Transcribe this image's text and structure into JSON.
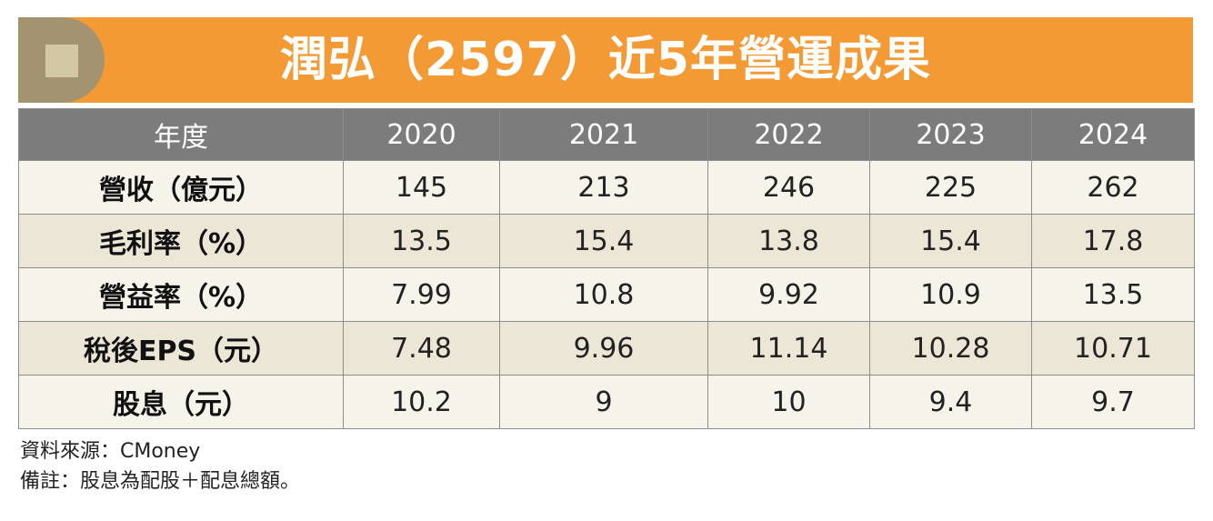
{
  "banner": {
    "title": "潤弘（2597）近5年營運成果"
  },
  "table": {
    "corner_label": "年度",
    "years": [
      "2020",
      "2021",
      "2022",
      "2023",
      "2024"
    ],
    "rows": [
      {
        "label": "營收（億元）",
        "values": [
          "145",
          "213",
          "246",
          "225",
          "262"
        ]
      },
      {
        "label": "毛利率（%）",
        "values": [
          "13.5",
          "15.4",
          "13.8",
          "15.4",
          "17.8"
        ]
      },
      {
        "label": "營益率（%）",
        "values": [
          "7.99",
          "10.8",
          "9.92",
          "10.9",
          "13.5"
        ]
      },
      {
        "label": "稅後EPS（元）",
        "values": [
          "7.48",
          "9.96",
          "11.14",
          "10.28",
          "10.71"
        ]
      },
      {
        "label": "股息（元）",
        "values": [
          "10.2",
          "9",
          "10",
          "9.4",
          "9.7"
        ]
      }
    ]
  },
  "footnotes": {
    "source": "資料來源：CMoney",
    "note": "備註：股息為配股＋配息總額。"
  },
  "colors": {
    "banner": "#f39a35",
    "banner_cap": "#a39370",
    "header_row": "#7c7c7c",
    "row_light": "#f6f3ea",
    "row_dark": "#ebe6d6"
  }
}
